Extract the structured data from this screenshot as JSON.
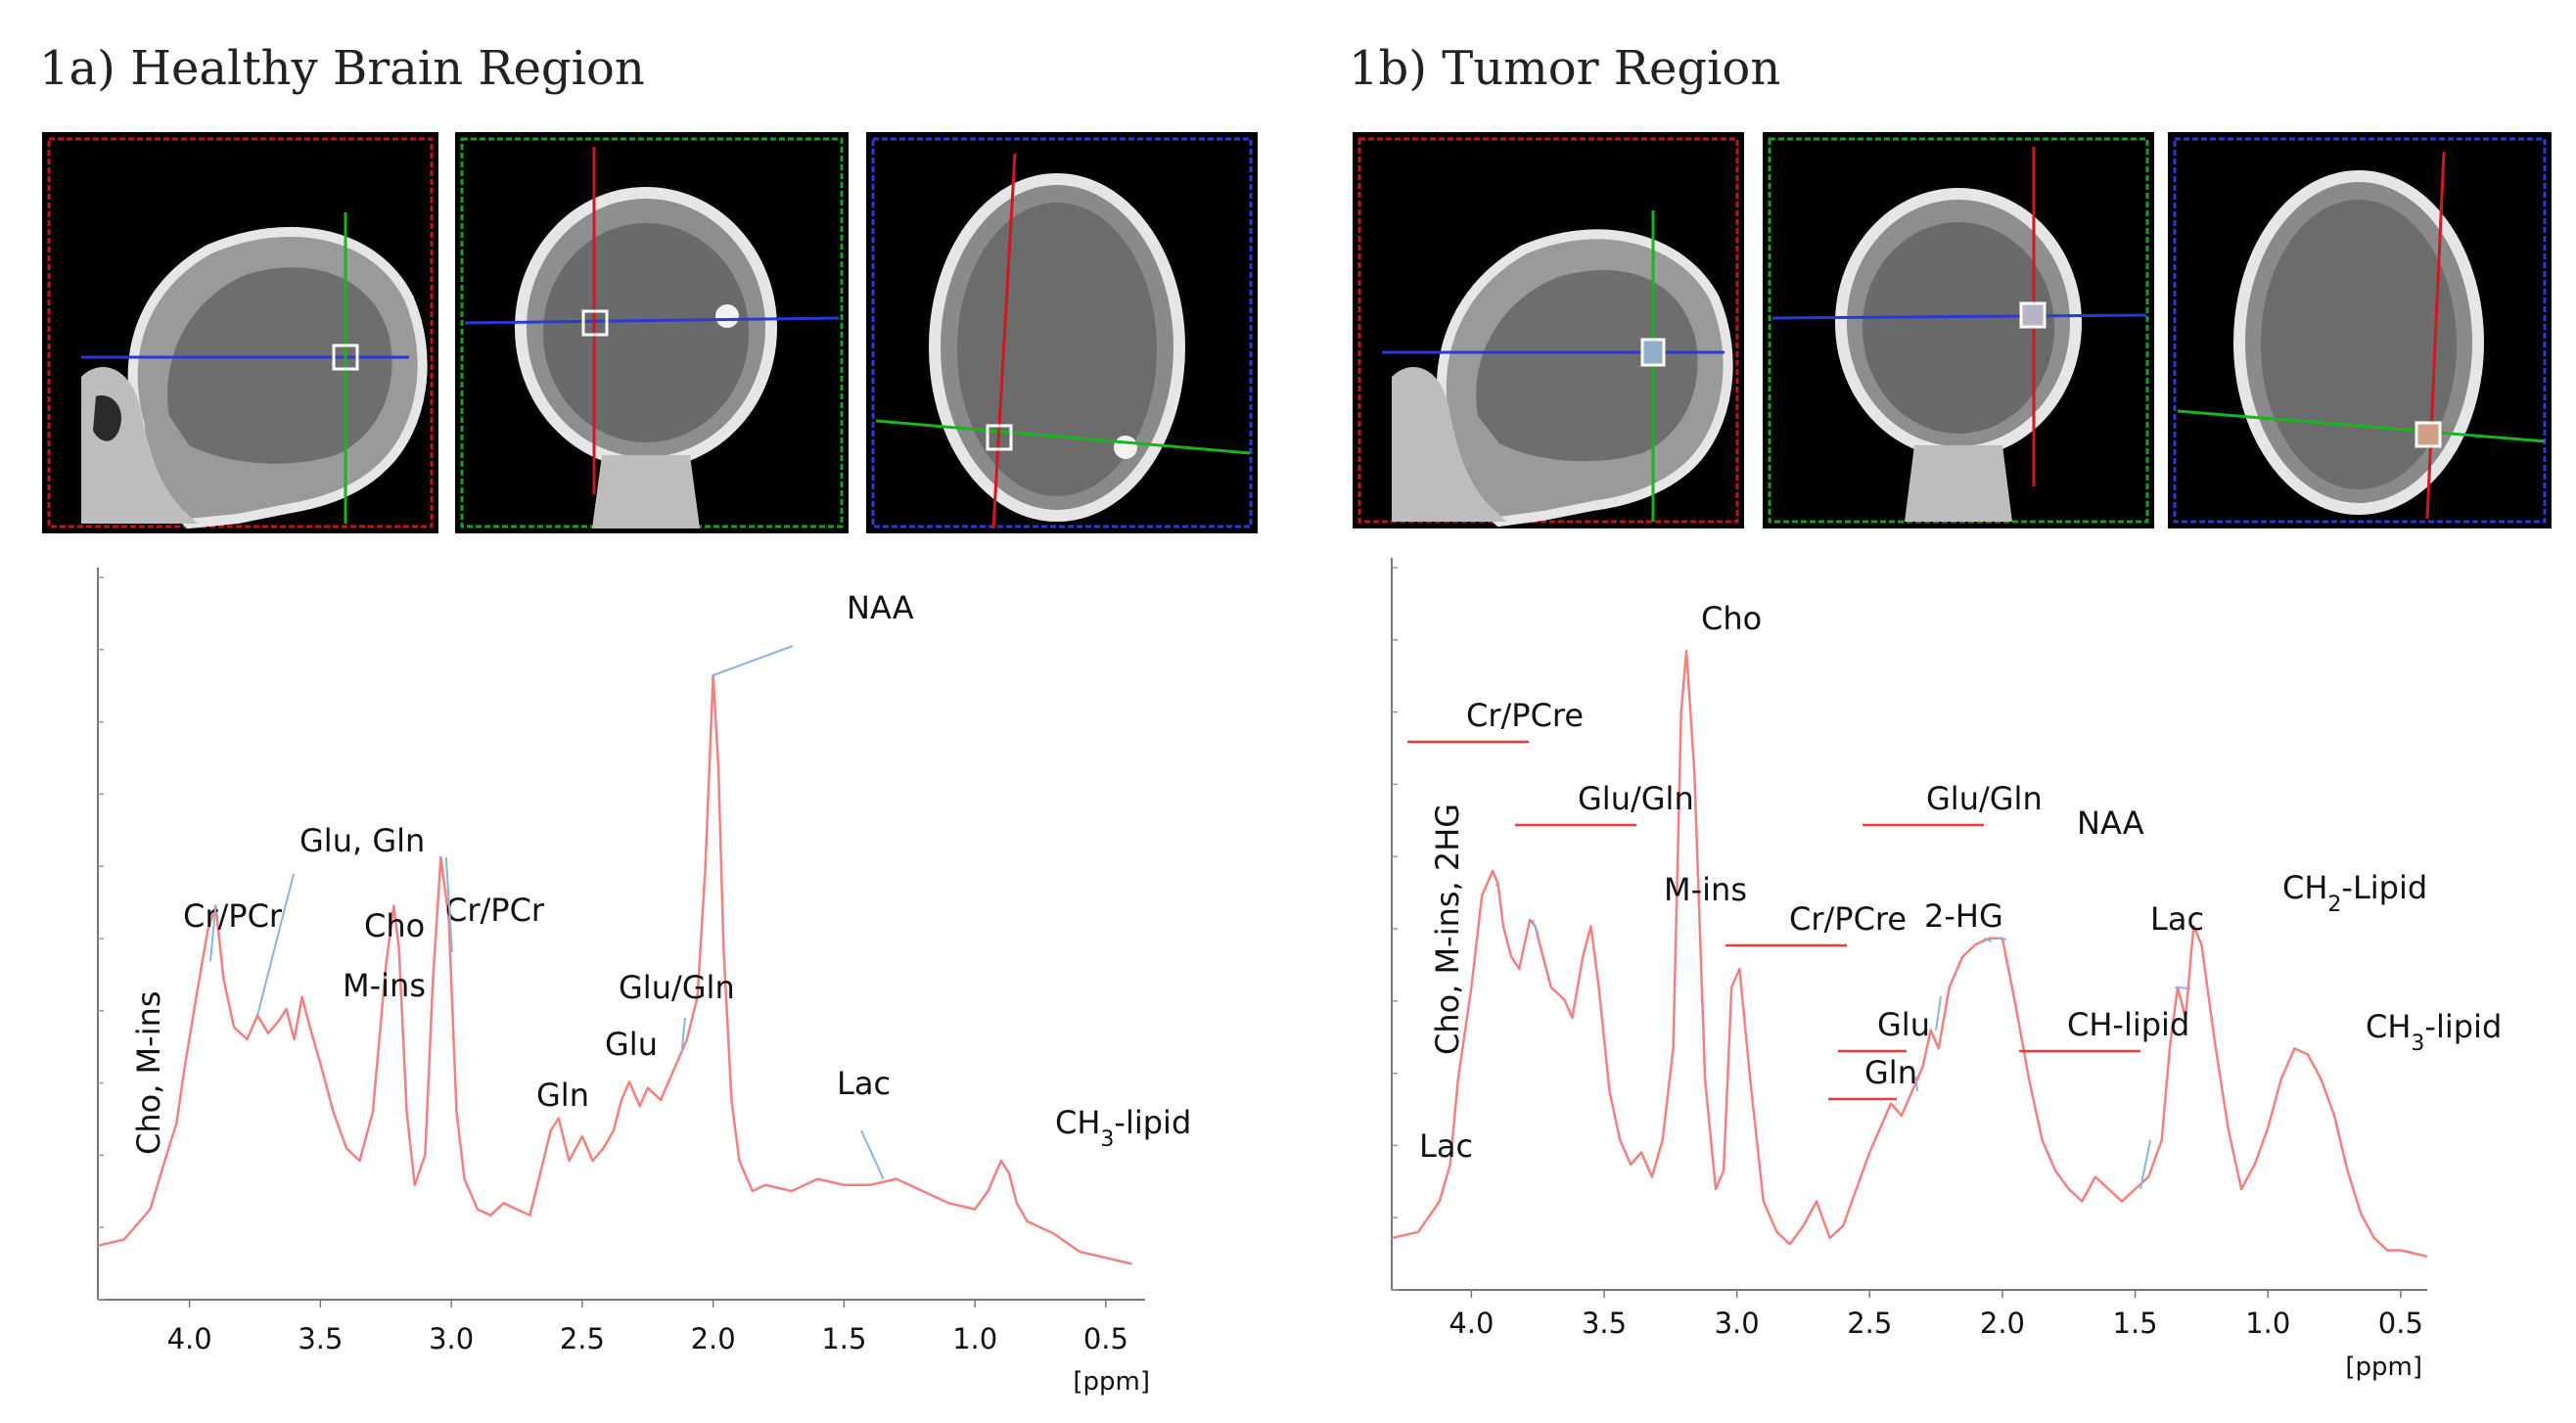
{
  "figure": {
    "panel_a": {
      "title": "1a) Healthy Brain Region",
      "mri_views": [
        {
          "view": "sagittal",
          "frame_color": "#c0141e",
          "line_h_color": "#2b3ad6",
          "line_v_color": "#19b51e"
        },
        {
          "view": "coronal",
          "frame_color": "#19a21e",
          "line_h_color": "#2b3ad6",
          "line_v_color": "#d0181e"
        },
        {
          "view": "axial",
          "frame_color": "#2b3ad6",
          "line_h_color": "#19b51e",
          "line_v_color": "#d0181e"
        }
      ]
    },
    "panel_b": {
      "title": "1b) Tumor Region",
      "mri_views": [
        {
          "view": "sagittal",
          "frame_color": "#c0141e",
          "line_h_color": "#2b3ad6",
          "line_v_color": "#19b51e"
        },
        {
          "view": "coronal",
          "frame_color": "#19a21e",
          "line_h_color": "#2b3ad6",
          "line_v_color": "#d0181e"
        },
        {
          "view": "axial",
          "frame_color": "#2b3ad6",
          "line_h_color": "#19b51e",
          "line_v_color": "#d0181e"
        }
      ]
    }
  },
  "chart_data": [
    {
      "type": "line",
      "title": "",
      "xlabel": "[ppm]",
      "ylabel": "",
      "xlim": [
        4.35,
        0.35
      ],
      "x_reversed": true,
      "x_ticks": [
        "4.0",
        "3.5",
        "3.0",
        "2.5",
        "2.0",
        "1.5",
        "1.0",
        "0.5"
      ],
      "grid": false,
      "line_color": "#f47f7f",
      "series": [
        {
          "x": [
            4.35,
            4.25,
            4.15,
            4.08,
            4.05,
            4.02,
            3.97,
            3.93,
            3.9,
            3.87,
            3.83,
            3.78,
            3.74,
            3.7,
            3.66,
            3.63,
            3.6,
            3.57,
            3.54,
            3.5,
            3.45,
            3.4,
            3.35,
            3.3,
            3.25,
            3.22,
            3.2,
            3.17,
            3.14,
            3.1,
            3.07,
            3.04,
            3.01,
            2.98,
            2.95,
            2.9,
            2.85,
            2.8,
            2.75,
            2.7,
            2.66,
            2.62,
            2.59,
            2.55,
            2.5,
            2.46,
            2.42,
            2.38,
            2.35,
            2.32,
            2.28,
            2.25,
            2.2,
            2.15,
            2.1,
            2.06,
            2.03,
            2.0,
            1.98,
            1.96,
            1.93,
            1.9,
            1.85,
            1.8,
            1.7,
            1.6,
            1.5,
            1.4,
            1.3,
            1.2,
            1.1,
            1.0,
            0.95,
            0.9,
            0.87,
            0.84,
            0.8,
            0.7,
            0.6,
            0.5,
            0.4
          ],
          "y": [
            0.06,
            0.07,
            0.12,
            0.22,
            0.26,
            0.35,
            0.48,
            0.58,
            0.62,
            0.5,
            0.42,
            0.4,
            0.44,
            0.41,
            0.43,
            0.45,
            0.4,
            0.47,
            0.42,
            0.36,
            0.28,
            0.22,
            0.2,
            0.28,
            0.52,
            0.62,
            0.55,
            0.28,
            0.16,
            0.21,
            0.5,
            0.7,
            0.6,
            0.28,
            0.17,
            0.12,
            0.11,
            0.13,
            0.12,
            0.11,
            0.18,
            0.25,
            0.27,
            0.2,
            0.24,
            0.2,
            0.22,
            0.25,
            0.3,
            0.33,
            0.29,
            0.32,
            0.3,
            0.35,
            0.4,
            0.47,
            0.68,
            1.0,
            0.85,
            0.55,
            0.3,
            0.2,
            0.15,
            0.16,
            0.15,
            0.17,
            0.16,
            0.16,
            0.17,
            0.15,
            0.13,
            0.12,
            0.15,
            0.2,
            0.18,
            0.13,
            0.1,
            0.08,
            0.05,
            0.04,
            0.03
          ]
        }
      ],
      "annotations": [
        {
          "text": "NAA",
          "x": 2.0,
          "y": 1.0
        },
        {
          "text": "Glu, Gln",
          "x": 3.74,
          "y": 0.44
        },
        {
          "text": "Cr/PCr",
          "x": 3.9,
          "y": 0.62
        },
        {
          "text": "Cho",
          "x": 3.22,
          "y": 0.62
        },
        {
          "text": "M-ins",
          "x": 3.55,
          "y": 0.45
        },
        {
          "text": "Cr/PCr",
          "x": 3.02,
          "y": 0.7
        },
        {
          "text": "Glu/Gln",
          "x": 2.12,
          "y": 0.38
        },
        {
          "text": "Glu",
          "x": 2.32,
          "y": 0.33
        },
        {
          "text": "Gln",
          "x": 2.45,
          "y": 0.2
        },
        {
          "text": "Lac",
          "x": 1.35,
          "y": 0.17
        },
        {
          "text": "CH3-lipid",
          "x": 0.9,
          "y": 0.2
        },
        {
          "text": "Cho, M-ins",
          "x": 4.05,
          "y": 0.26
        }
      ]
    },
    {
      "type": "line",
      "title": "",
      "xlabel": "[ppm]",
      "ylabel": "",
      "xlim": [
        4.3,
        0.4
      ],
      "x_reversed": true,
      "x_ticks": [
        "4.0",
        "3.5",
        "3.0",
        "2.5",
        "2.0",
        "1.5",
        "1.0",
        "0.5"
      ],
      "grid": false,
      "line_color": "#f47f7f",
      "series": [
        {
          "x": [
            4.3,
            4.2,
            4.12,
            4.08,
            4.05,
            4.0,
            3.96,
            3.92,
            3.9,
            3.88,
            3.85,
            3.82,
            3.78,
            3.76,
            3.73,
            3.7,
            3.65,
            3.62,
            3.58,
            3.55,
            3.52,
            3.48,
            3.44,
            3.4,
            3.36,
            3.32,
            3.28,
            3.24,
            3.21,
            3.19,
            3.16,
            3.12,
            3.08,
            3.05,
            3.02,
            2.99,
            2.95,
            2.9,
            2.85,
            2.8,
            2.75,
            2.7,
            2.65,
            2.6,
            2.55,
            2.5,
            2.45,
            2.42,
            2.38,
            2.34,
            2.3,
            2.27,
            2.24,
            2.2,
            2.15,
            2.1,
            2.05,
            2.0,
            1.95,
            1.9,
            1.85,
            1.8,
            1.75,
            1.7,
            1.65,
            1.6,
            1.55,
            1.5,
            1.45,
            1.4,
            1.37,
            1.34,
            1.31,
            1.28,
            1.25,
            1.2,
            1.15,
            1.1,
            1.05,
            1.0,
            0.95,
            0.9,
            0.85,
            0.8,
            0.75,
            0.7,
            0.65,
            0.6,
            0.55,
            0.5,
            0.45,
            0.4
          ],
          "y": [
            0.04,
            0.05,
            0.1,
            0.16,
            0.3,
            0.45,
            0.6,
            0.64,
            0.62,
            0.55,
            0.5,
            0.48,
            0.56,
            0.55,
            0.5,
            0.45,
            0.43,
            0.4,
            0.5,
            0.55,
            0.45,
            0.28,
            0.2,
            0.16,
            0.18,
            0.14,
            0.2,
            0.35,
            0.9,
            1.0,
            0.8,
            0.3,
            0.12,
            0.15,
            0.45,
            0.48,
            0.3,
            0.1,
            0.05,
            0.03,
            0.06,
            0.1,
            0.04,
            0.06,
            0.12,
            0.18,
            0.23,
            0.26,
            0.24,
            0.28,
            0.32,
            0.38,
            0.35,
            0.45,
            0.5,
            0.52,
            0.53,
            0.53,
            0.42,
            0.3,
            0.2,
            0.15,
            0.12,
            0.1,
            0.14,
            0.12,
            0.1,
            0.12,
            0.14,
            0.2,
            0.35,
            0.45,
            0.4,
            0.55,
            0.52,
            0.36,
            0.22,
            0.12,
            0.16,
            0.22,
            0.3,
            0.35,
            0.34,
            0.3,
            0.24,
            0.15,
            0.08,
            0.04,
            0.02,
            0.02,
            0.015,
            0.01
          ]
        }
      ],
      "annotations": [
        {
          "text": "Cho",
          "x": 3.2,
          "y": 1.0
        },
        {
          "text": "Cr/PCre",
          "x": 3.9,
          "y": 0.62
        },
        {
          "text": "Glu/Gln",
          "x": 3.77,
          "y": 0.56
        },
        {
          "text": "M-ins",
          "x": 3.55,
          "y": 0.55
        },
        {
          "text": "Glu/Gln",
          "x": 2.07,
          "y": 0.53
        },
        {
          "text": "NAA",
          "x": 2.02,
          "y": 0.53
        },
        {
          "text": "2-HG",
          "x": 2.25,
          "y": 0.38
        },
        {
          "text": "Cr/PCre",
          "x": 3.02,
          "y": 0.48
        },
        {
          "text": "Glu",
          "x": 2.32,
          "y": 0.28
        },
        {
          "text": "Gln",
          "x": 2.45,
          "y": 0.23
        },
        {
          "text": "CH-lipid",
          "x": 1.48,
          "y": 0.12
        },
        {
          "text": "Lac",
          "x": 1.35,
          "y": 0.45
        },
        {
          "text": "CH2-Lipid",
          "x": 1.28,
          "y": 0.55
        },
        {
          "text": "CH3-lipid",
          "x": 0.87,
          "y": 0.34
        },
        {
          "text": "Cho, M-ins, 2HG",
          "x": 4.07,
          "y": 0.3
        },
        {
          "text": "Lac",
          "x": 4.15,
          "y": 0.1
        }
      ]
    }
  ]
}
